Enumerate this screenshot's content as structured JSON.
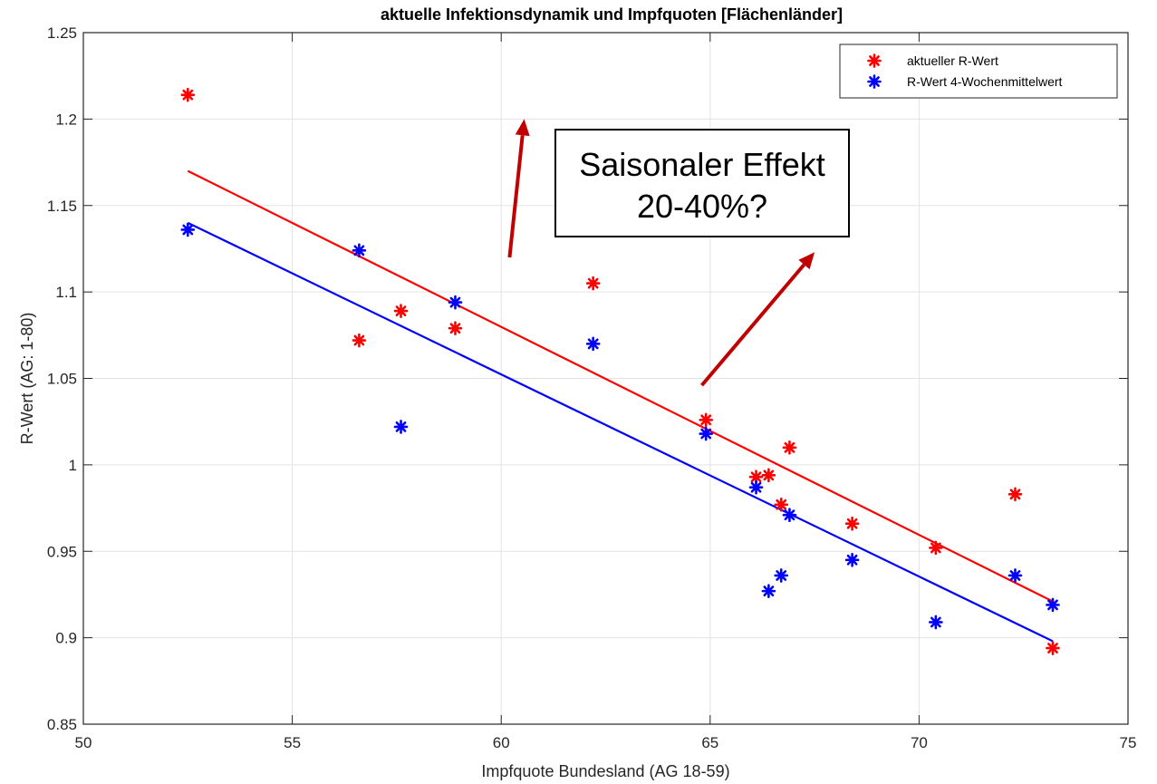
{
  "chart_data": {
    "type": "scatter",
    "title": "aktuelle Infektionsdynamik und Impfquoten [Flächenländer]",
    "xlabel": "Impfquote Bundesland (AG 18-59)",
    "ylabel": "R-Wert (AG: 1-80)",
    "xlim": [
      50,
      75
    ],
    "ylim": [
      0.85,
      1.25
    ],
    "xticks": [
      "50",
      "55",
      "60",
      "65",
      "70",
      "75"
    ],
    "yticks": [
      "0.85",
      "0.9",
      "0.95",
      "1",
      "1.05",
      "1.1",
      "1.15",
      "1.2",
      "1.25"
    ],
    "grid": true,
    "legend_position": "top-right",
    "series": [
      {
        "name": "aktueller R-Wert",
        "color": "#ff0000",
        "marker": "asterisk",
        "x": [
          52.5,
          56.6,
          57.6,
          58.9,
          62.2,
          64.9,
          66.1,
          66.4,
          66.7,
          66.9,
          68.4,
          70.4,
          72.3,
          73.2
        ],
        "y": [
          1.214,
          1.072,
          1.089,
          1.079,
          1.105,
          1.026,
          0.993,
          0.994,
          0.977,
          1.01,
          0.966,
          0.952,
          0.983,
          0.894
        ]
      },
      {
        "name": "R-Wert 4-Wochenmittelwert",
        "color": "#0000ff",
        "marker": "asterisk",
        "x": [
          52.5,
          56.6,
          57.6,
          58.9,
          62.2,
          64.9,
          66.1,
          66.4,
          66.7,
          66.9,
          68.4,
          70.4,
          72.3,
          73.2
        ],
        "y": [
          1.136,
          1.124,
          1.022,
          1.094,
          1.07,
          1.018,
          0.987,
          0.927,
          0.936,
          0.971,
          0.945,
          0.909,
          0.936,
          0.919
        ]
      }
    ],
    "fit_lines": [
      {
        "color": "#ff0000",
        "x": [
          52.5,
          73.2
        ],
        "y": [
          1.17,
          0.921
        ]
      },
      {
        "color": "#0000ff",
        "x": [
          52.5,
          73.2
        ],
        "y": [
          1.14,
          0.898
        ]
      }
    ],
    "annotation": {
      "lines": [
        "Saisonaler Effekt",
        "20-40%?"
      ]
    },
    "arrows": [
      {
        "color": "#c00000",
        "from": [
          60.2,
          1.12
        ],
        "to": [
          60.55,
          1.2
        ]
      },
      {
        "color": "#c00000",
        "from": [
          64.8,
          1.046
        ],
        "to": [
          67.5,
          1.123
        ]
      }
    ]
  }
}
